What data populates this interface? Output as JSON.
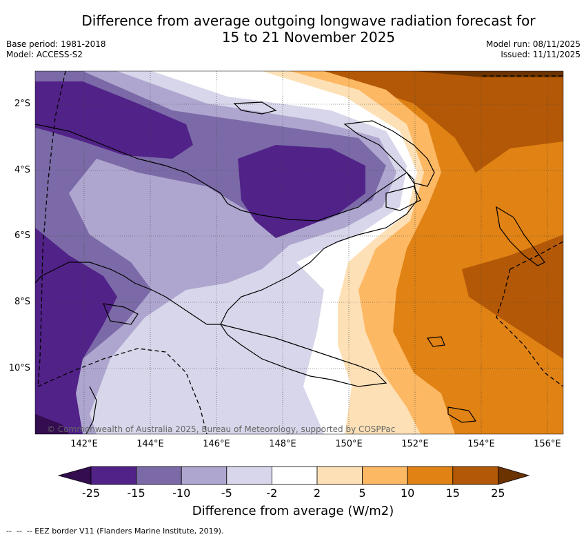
{
  "title_line1": "Difference from average outgoing longwave radiation forecast for",
  "title_line2": "15 to 21 November 2025",
  "base_period": "Base period: 1981-2018",
  "model": "Model: ACCESS-S2",
  "model_run": "Model run: 08/11/2025",
  "issued": "Issued: 11/11/2025",
  "y_ticks": [
    "2°S",
    "4°S",
    "6°S",
    "8°S",
    "10°S"
  ],
  "x_ticks": [
    "142°E",
    "144°E",
    "146°E",
    "148°E",
    "150°E",
    "152°E",
    "154°E",
    "156°E"
  ],
  "copyright": "© Commonwealth of Australia 2025, Bureau of Meteorology, supported by COSPPac",
  "colorbar": {
    "labels": [
      "-25",
      "-15",
      "-10",
      "-5",
      "-2",
      "2",
      "5",
      "10",
      "15",
      "25"
    ],
    "colors": [
      "#330d4f",
      "#512288",
      "#7b6aa7",
      "#aea6cf",
      "#d7d6ea",
      "#ffffff",
      "#fee0b6",
      "#fdb863",
      "#e08214",
      "#b35806",
      "#6b3300"
    ],
    "title": "Difference from average (W/m2)"
  },
  "legend_text": "-- EEZ border V11 (Flanders Marine Institute, 2019)."
}
